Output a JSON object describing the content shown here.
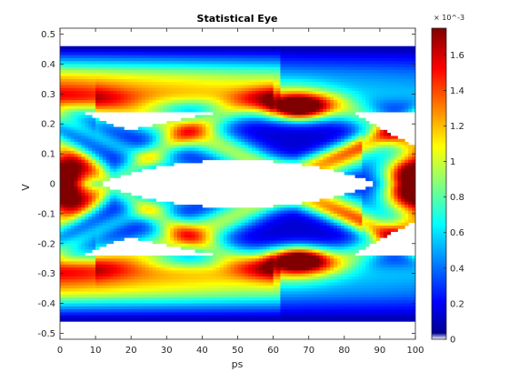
{
  "chart_data": {
    "type": "heatmap",
    "title": "Statistical Eye",
    "xlabel": "ps",
    "ylabel": "V",
    "xlim": [
      0,
      100
    ],
    "ylim": [
      -0.52,
      0.52
    ],
    "x_ticks": [
      0,
      10,
      20,
      30,
      40,
      50,
      60,
      70,
      80,
      90,
      100
    ],
    "y_ticks": [
      0.5,
      0.4,
      0.3,
      0.2,
      0.1,
      0,
      -0.1,
      -0.2,
      -0.3,
      -0.4,
      -0.5
    ],
    "colormap": "jet",
    "colorbar": {
      "range": [
        0,
        0.00175
      ],
      "ticks": [
        0,
        0.2,
        0.4,
        0.6,
        0.8,
        1,
        1.2,
        1.4,
        1.6
      ],
      "exponent_label": "× 10^-3"
    },
    "eye": {
      "rail_levels": [
        0.45,
        -0.45
      ],
      "level_center": 0.35,
      "level_spread": 0.1,
      "crossing_ps": [
        0,
        100
      ],
      "mid_crossings": [
        {
          "x": 67,
          "y": 0.25
        },
        {
          "x": 67,
          "y": -0.25
        }
      ],
      "inner_eye_opening_v": 0.08,
      "eye_center_ps": 50
    }
  }
}
